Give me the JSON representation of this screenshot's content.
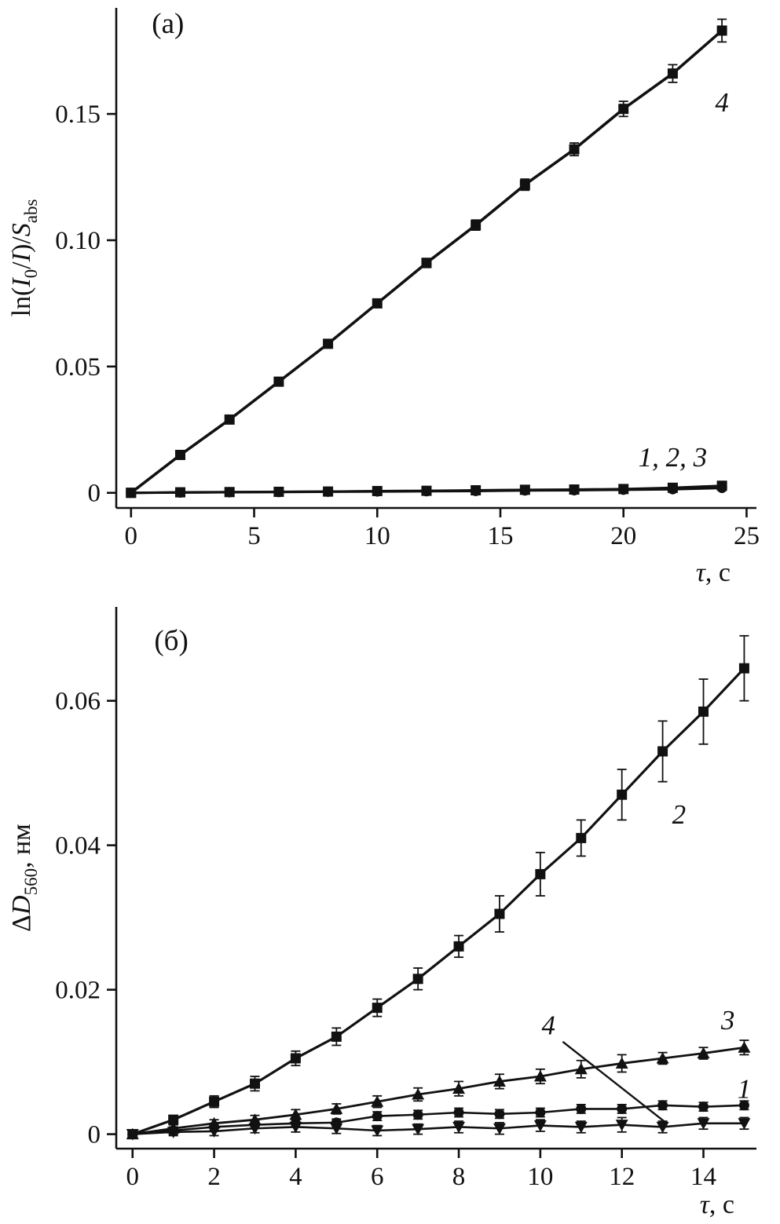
{
  "figure": {
    "background": "#ffffff",
    "ink": "#111111"
  },
  "chart_data": [
    {
      "id": "panel-a",
      "type": "line",
      "panel_label": "(а)",
      "title": "",
      "xlabel": "τ, с",
      "ylabel": "ln(I0/I)/Sabs",
      "xlabel_segments": [
        {
          "text": "τ",
          "style": "italic"
        },
        {
          "text": ", с",
          "style": "normal"
        }
      ],
      "ylabel_segments": [
        {
          "text": "ln(",
          "style": "normal"
        },
        {
          "text": "I",
          "style": "italic"
        },
        {
          "text": "0",
          "style": "sub"
        },
        {
          "text": "/",
          "style": "normal"
        },
        {
          "text": "I",
          "style": "italic"
        },
        {
          "text": ")/",
          "style": "normal"
        },
        {
          "text": "S",
          "style": "italic"
        },
        {
          "text": "abs",
          "style": "sub"
        }
      ],
      "xlim": [
        -0.6,
        25.4
      ],
      "ylim": [
        -0.006,
        0.192
      ],
      "xticks": [
        0,
        5,
        10,
        15,
        20,
        25
      ],
      "xtick_labels": [
        "0",
        "5",
        "10",
        "15",
        "20",
        "25"
      ],
      "yticks": [
        0,
        0.05,
        0.1,
        0.15
      ],
      "ytick_labels": [
        "0",
        "0.05",
        "0.10",
        "0.15"
      ],
      "grid": false,
      "series": [
        {
          "name": "1",
          "marker": "square",
          "line_width": 3,
          "x": [
            0,
            2,
            4,
            6,
            8,
            10,
            12,
            14,
            16,
            18,
            20,
            22,
            24
          ],
          "y": [
            0,
            0.0002,
            0.0003,
            0.0004,
            0.0005,
            0.0007,
            0.0008,
            0.001,
            0.0012,
            0.0013,
            0.0015,
            0.002,
            0.0028
          ],
          "err": [
            0.0005,
            0.0005,
            0.0005,
            0.0005,
            0.0005,
            0.0005,
            0.0005,
            0.0005,
            0.0005,
            0.0005,
            0.0005,
            0.0005,
            0.0005
          ]
        },
        {
          "name": "2",
          "marker": "circle",
          "line_width": 3,
          "x": [
            0,
            2,
            4,
            6,
            8,
            10,
            12,
            14,
            16,
            18,
            20,
            22,
            24
          ],
          "y": [
            0,
            0.0001,
            0.0002,
            0.0003,
            0.0004,
            0.0005,
            0.0006,
            0.0007,
            0.0009,
            0.001,
            0.0012,
            0.0014,
            0.0019
          ],
          "err": [
            0.0005,
            0.0005,
            0.0005,
            0.0005,
            0.0005,
            0.0005,
            0.0005,
            0.0005,
            0.0005,
            0.0005,
            0.0005,
            0.0005,
            0.0005
          ]
        },
        {
          "name": "3",
          "marker": "circle",
          "line_width": 3,
          "x": [
            0,
            2,
            4,
            6,
            8,
            10,
            12,
            14,
            16,
            18,
            20,
            22,
            24
          ],
          "y": [
            0,
            0.00015,
            0.00025,
            0.00035,
            0.0005,
            0.0006,
            0.0007,
            0.0009,
            0.001,
            0.0012,
            0.0013,
            0.0017,
            0.0023
          ],
          "err": [
            0.0005,
            0.0005,
            0.0005,
            0.0005,
            0.0005,
            0.0005,
            0.0005,
            0.0005,
            0.0005,
            0.0005,
            0.0005,
            0.0005,
            0.0005
          ]
        },
        {
          "name": "4",
          "marker": "square",
          "line_width": 3.6,
          "x": [
            0,
            2,
            4,
            6,
            8,
            10,
            12,
            14,
            16,
            18,
            20,
            22,
            24
          ],
          "y": [
            0,
            0.015,
            0.029,
            0.044,
            0.059,
            0.075,
            0.091,
            0.106,
            0.122,
            0.136,
            0.152,
            0.166,
            0.183
          ],
          "err": [
            0.0008,
            0.001,
            0.001,
            0.0012,
            0.0012,
            0.0015,
            0.0018,
            0.002,
            0.0022,
            0.0025,
            0.003,
            0.0035,
            0.0045
          ]
        }
      ],
      "leaders": [],
      "annotations": [
        {
          "text": "(а)",
          "x": 1.5,
          "y": 0.182,
          "italic": false,
          "size": 37
        },
        {
          "text": "4",
          "x": 24.0,
          "y": 0.151,
          "italic": true,
          "size": 35
        },
        {
          "text": "1, 2, 3",
          "x": 22.0,
          "y": 0.0105,
          "italic": true,
          "size": 35
        }
      ]
    },
    {
      "id": "panel-b",
      "type": "line",
      "panel_label": "(б)",
      "title": "",
      "xlabel": "τ, с",
      "ylabel": "ΔD560, нм",
      "xlabel_segments": [
        {
          "text": "τ",
          "style": "italic"
        },
        {
          "text": ", с",
          "style": "normal"
        }
      ],
      "ylabel_segments": [
        {
          "text": "Δ",
          "style": "normal"
        },
        {
          "text": "D",
          "style": "italic"
        },
        {
          "text": "560",
          "style": "sub"
        },
        {
          "text": ", нм",
          "style": "normal"
        }
      ],
      "xlim": [
        -0.4,
        15.3
      ],
      "ylim": [
        -0.002,
        0.073
      ],
      "xticks": [
        0,
        2,
        4,
        6,
        8,
        10,
        12,
        14
      ],
      "xtick_labels": [
        "0",
        "2",
        "4",
        "6",
        "8",
        "10",
        "12",
        "14"
      ],
      "yticks": [
        0,
        0.02,
        0.04,
        0.06
      ],
      "ytick_labels": [
        "0",
        "0.02",
        "0.04",
        "0.06"
      ],
      "grid": false,
      "series": [
        {
          "name": "4",
          "marker": "triangle-down",
          "line_width": 2.6,
          "x": [
            0,
            1,
            2,
            3,
            4,
            5,
            6,
            7,
            8,
            9,
            10,
            11,
            12,
            13,
            14,
            15
          ],
          "y": [
            0,
            0.0003,
            0.0004,
            0.0008,
            0.001,
            0.0008,
            0.0005,
            0.0007,
            0.001,
            0.0008,
            0.0012,
            0.001,
            0.0013,
            0.001,
            0.0015,
            0.0015
          ],
          "err": [
            0.0005,
            0.0005,
            0.0006,
            0.0006,
            0.0007,
            0.0007,
            0.0007,
            0.0007,
            0.0008,
            0.0008,
            0.0008,
            0.0008,
            0.001,
            0.0008,
            0.0008,
            0.0008
          ]
        },
        {
          "name": "1",
          "marker": "circle",
          "line_width": 2.6,
          "x": [
            0,
            1,
            2,
            3,
            4,
            5,
            6,
            7,
            8,
            9,
            10,
            11,
            12,
            13,
            14,
            15
          ],
          "y": [
            0,
            0.0005,
            0.001,
            0.0013,
            0.0015,
            0.0016,
            0.0025,
            0.0027,
            0.003,
            0.0028,
            0.003,
            0.0035,
            0.0035,
            0.004,
            0.0038,
            0.004
          ],
          "err": [
            0.0004,
            0.0005,
            0.0005,
            0.0005,
            0.0005,
            0.0005,
            0.0006,
            0.0006,
            0.0006,
            0.0006,
            0.0006,
            0.0006,
            0.0006,
            0.0006,
            0.0006,
            0.0006
          ]
        },
        {
          "name": "3",
          "marker": "triangle-up",
          "line_width": 2.8,
          "x": [
            0,
            1,
            2,
            3,
            4,
            5,
            6,
            7,
            8,
            9,
            10,
            11,
            12,
            13,
            14,
            15
          ],
          "y": [
            0,
            0.0008,
            0.0015,
            0.002,
            0.0027,
            0.0035,
            0.0045,
            0.0055,
            0.0063,
            0.0073,
            0.008,
            0.009,
            0.0098,
            0.0105,
            0.0112,
            0.012
          ],
          "err": [
            0.0004,
            0.0005,
            0.0005,
            0.0006,
            0.0007,
            0.0007,
            0.0008,
            0.0009,
            0.001,
            0.001,
            0.001,
            0.0012,
            0.0012,
            0.0008,
            0.0008,
            0.001
          ]
        },
        {
          "name": "2",
          "marker": "square",
          "line_width": 3.2,
          "x": [
            0,
            1,
            2,
            3,
            4,
            5,
            6,
            7,
            8,
            9,
            10,
            11,
            12,
            13,
            14,
            15
          ],
          "y": [
            0,
            0.002,
            0.0045,
            0.007,
            0.0105,
            0.0135,
            0.0175,
            0.0215,
            0.026,
            0.0305,
            0.036,
            0.041,
            0.047,
            0.053,
            0.0585,
            0.0645
          ],
          "err": [
            0.0005,
            0.0006,
            0.0008,
            0.001,
            0.001,
            0.0012,
            0.0012,
            0.0015,
            0.0015,
            0.0025,
            0.003,
            0.0025,
            0.0035,
            0.0042,
            0.0045,
            0.0045
          ]
        }
      ],
      "leaders": [
        {
          "x1": 10.55,
          "y1": 0.0128,
          "x2": 13.1,
          "y2": 0.0015
        }
      ],
      "annotations": [
        {
          "text": "(б)",
          "x": 0.95,
          "y": 0.067,
          "italic": false,
          "size": 37
        },
        {
          "text": "2",
          "x": 13.4,
          "y": 0.043,
          "italic": true,
          "size": 35
        },
        {
          "text": "3",
          "x": 14.6,
          "y": 0.0145,
          "italic": true,
          "size": 35
        },
        {
          "text": "1",
          "x": 15.0,
          "y": 0.005,
          "italic": true,
          "size": 35
        },
        {
          "text": "4",
          "x": 10.2,
          "y": 0.0138,
          "italic": true,
          "size": 35
        }
      ]
    }
  ]
}
